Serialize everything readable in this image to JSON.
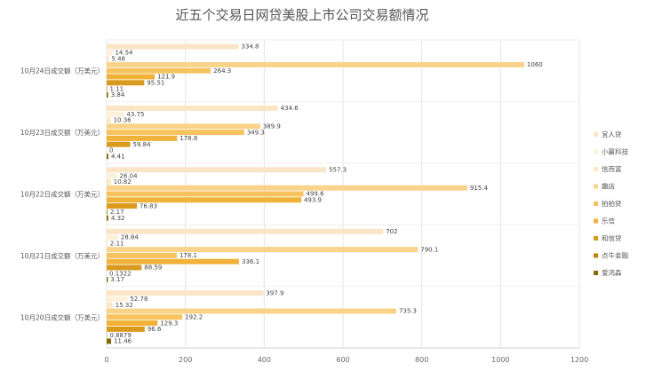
{
  "chart_data": {
    "type": "bar",
    "orientation": "horizontal",
    "title": "近五个交易日网贷美股上市公司交易额情况",
    "xlim": [
      0,
      1200
    ],
    "x_ticks": [
      "0",
      "200",
      "400",
      "600",
      "800",
      "1000",
      "1200"
    ],
    "grid": true,
    "legend_position": "right",
    "categories": [
      "10月24日成交额（万美元）",
      "10月23日成交额（万美元）",
      "10月22日成交额（万美元）",
      "10月21日成交额（万美元）",
      "10月20日成交额（万美元）"
    ],
    "series": [
      {
        "name": "宜人贷",
        "color": "#fbe5c7",
        "values": [
          334.8,
          434.6,
          557.3,
          702,
          397.9
        ],
        "labels": [
          "334.8",
          "434.6",
          "557.3",
          "702",
          "397.9"
        ]
      },
      {
        "name": "小赢科技",
        "color": "#fdf1dc",
        "values": [
          14.54,
          43.75,
          26.04,
          28.84,
          52.78
        ],
        "labels": [
          "14.54",
          "43.75",
          "26.04",
          "28.84",
          "52.78"
        ]
      },
      {
        "name": "信而富",
        "color": "#fce9c4",
        "values": [
          5.48,
          10.36,
          10.82,
          2.11,
          15.32
        ],
        "labels": [
          "5.48",
          "10.36",
          "10.82",
          "2.11",
          "15.32"
        ]
      },
      {
        "name": "趣店",
        "color": "#f9d38a",
        "values": [
          1060,
          389.9,
          915.4,
          790.1,
          735.3
        ],
        "labels": [
          "1060",
          "389.9",
          "915.4",
          "790.1",
          "735.3"
        ]
      },
      {
        "name": "拍拍贷",
        "color": "#f6c35e",
        "values": [
          264.3,
          349.3,
          499.6,
          178.1,
          192.2
        ],
        "labels": [
          "264.3",
          "349.3",
          "499.6",
          "178.1",
          "192.2"
        ]
      },
      {
        "name": "乐信",
        "color": "#f0b238",
        "values": [
          121.9,
          178.8,
          493.9,
          336.1,
          129.3
        ],
        "labels": [
          "121.9",
          "178.8",
          "493.9",
          "336.1",
          "129.3"
        ]
      },
      {
        "name": "和信贷",
        "color": "#d99a1e",
        "values": [
          95.51,
          59.84,
          76.83,
          88.59,
          96.6
        ],
        "labels": [
          "95.51",
          "59.84",
          "76.83",
          "88.59",
          "96.6"
        ]
      },
      {
        "name": "点牛金融",
        "color": "#b8860b",
        "values": [
          1.11,
          0,
          2.17,
          0.1322,
          0.8879
        ],
        "labels": [
          "1.11",
          "0",
          "2.17",
          "0.1322",
          "0.8879"
        ]
      },
      {
        "name": "爱鸿森",
        "color": "#8a6a08",
        "values": [
          3.84,
          4.41,
          4.32,
          3.17,
          11.46
        ],
        "labels": [
          "3.84",
          "4.41",
          "4.32",
          "3.17",
          "11.46"
        ]
      }
    ]
  }
}
